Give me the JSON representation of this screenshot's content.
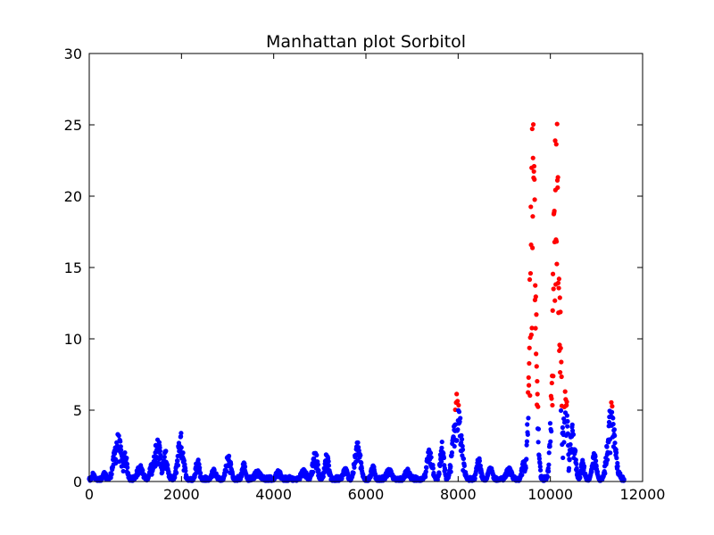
{
  "chart_data": {
    "type": "scatter",
    "title": "Manhattan plot Sorbitol",
    "xlabel": "",
    "ylabel": "",
    "xlim": [
      0,
      12000
    ],
    "ylim": [
      0,
      30
    ],
    "x_ticks": [
      0,
      2000,
      4000,
      6000,
      8000,
      10000,
      12000
    ],
    "y_ticks": [
      0,
      5,
      10,
      15,
      20,
      25,
      30
    ],
    "x_tick_labels": [
      "0",
      "2000",
      "4000",
      "6000",
      "8000",
      "10000",
      "12000"
    ],
    "y_tick_labels": [
      "0",
      "5",
      "10",
      "15",
      "20",
      "25",
      "30"
    ],
    "grid": false,
    "legend": "none",
    "colors": {
      "below_threshold": "#0000ff",
      "above_threshold": "#ff0000"
    },
    "threshold": 5,
    "x_extent": [
      0,
      11600
    ],
    "baseline_max": 0.8,
    "peaks": [
      {
        "x": 90,
        "y": 0.7,
        "w": 40
      },
      {
        "x": 330,
        "y": 0.7,
        "w": 50
      },
      {
        "x": 620,
        "y": 3.4,
        "w": 120
      },
      {
        "x": 780,
        "y": 2.2,
        "w": 60
      },
      {
        "x": 1100,
        "y": 1.2,
        "w": 100
      },
      {
        "x": 1350,
        "y": 1.3,
        "w": 60
      },
      {
        "x": 1480,
        "y": 3.2,
        "w": 100
      },
      {
        "x": 1650,
        "y": 2.2,
        "w": 70
      },
      {
        "x": 1980,
        "y": 3.5,
        "w": 90
      },
      {
        "x": 2350,
        "y": 1.8,
        "w": 60
      },
      {
        "x": 2700,
        "y": 0.9,
        "w": 80
      },
      {
        "x": 3020,
        "y": 2.0,
        "w": 80
      },
      {
        "x": 3350,
        "y": 1.4,
        "w": 60
      },
      {
        "x": 3650,
        "y": 0.8,
        "w": 120
      },
      {
        "x": 4100,
        "y": 0.9,
        "w": 80
      },
      {
        "x": 4650,
        "y": 0.9,
        "w": 100
      },
      {
        "x": 4900,
        "y": 2.2,
        "w": 80
      },
      {
        "x": 5150,
        "y": 2.0,
        "w": 70
      },
      {
        "x": 5550,
        "y": 1.0,
        "w": 80
      },
      {
        "x": 5820,
        "y": 2.9,
        "w": 90
      },
      {
        "x": 6150,
        "y": 1.2,
        "w": 60
      },
      {
        "x": 6500,
        "y": 0.9,
        "w": 100
      },
      {
        "x": 6900,
        "y": 0.9,
        "w": 90
      },
      {
        "x": 7380,
        "y": 2.4,
        "w": 90
      },
      {
        "x": 7650,
        "y": 2.8,
        "w": 60
      },
      {
        "x": 7980,
        "y": 6.3,
        "w": 120
      },
      {
        "x": 8450,
        "y": 1.8,
        "w": 70
      },
      {
        "x": 8700,
        "y": 1.0,
        "w": 80
      },
      {
        "x": 9100,
        "y": 1.0,
        "w": 100
      },
      {
        "x": 9420,
        "y": 1.5,
        "w": 60
      },
      {
        "x": 9620,
        "y": 25.7,
        "w": 90
      },
      {
        "x": 10130,
        "y": 26.0,
        "w": 100
      },
      {
        "x": 10330,
        "y": 7.3,
        "w": 60
      },
      {
        "x": 10480,
        "y": 4.0,
        "w": 80
      },
      {
        "x": 10700,
        "y": 1.5,
        "w": 60
      },
      {
        "x": 10950,
        "y": 2.0,
        "w": 70
      },
      {
        "x": 11320,
        "y": 5.8,
        "w": 110
      },
      {
        "x": 11500,
        "y": 0.8,
        "w": 40
      }
    ]
  }
}
